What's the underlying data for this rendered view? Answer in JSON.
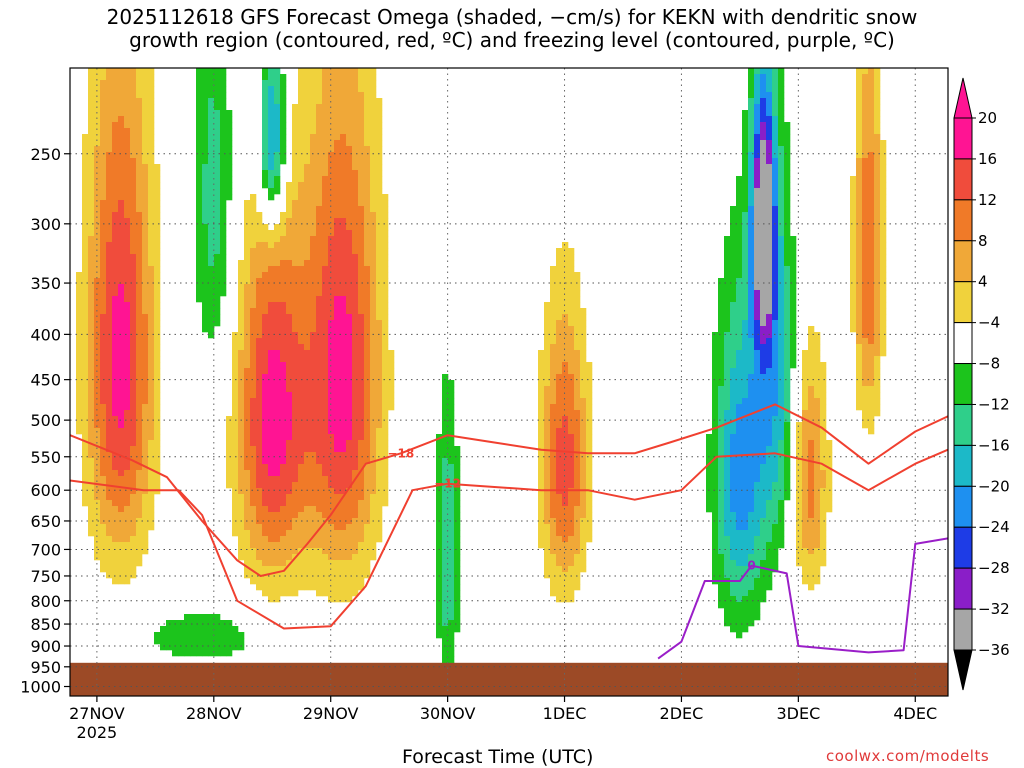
{
  "title": {
    "line1": "2025112618 GFS Forecast Omega (shaded, −cm/s) for KEKN with dendritic snow",
    "line2": "growth region (contoured, red, ºC) and freezing level (contoured, purple, ºC)"
  },
  "credit": "coolwx.com/modelts",
  "chart_data": {
    "type": "heatmap",
    "xlabel": "Forecast Time (UTC)",
    "ylabel": "",
    "x_ticks": [
      {
        "label": "27NOV",
        "sub": "2025",
        "day": 0
      },
      {
        "label": "28NOV",
        "sub": "",
        "day": 1
      },
      {
        "label": "29NOV",
        "sub": "",
        "day": 2
      },
      {
        "label": "30NOV",
        "sub": "",
        "day": 3
      },
      {
        "label": "1DEC",
        "sub": "",
        "day": 4
      },
      {
        "label": "2DEC",
        "sub": "",
        "day": 5
      },
      {
        "label": "3DEC",
        "sub": "",
        "day": 6
      },
      {
        "label": "4DEC",
        "sub": "",
        "day": 7
      }
    ],
    "xlim_days": [
      -0.23,
      7.28
    ],
    "y_ticks": [
      250,
      300,
      350,
      400,
      450,
      500,
      550,
      600,
      650,
      700,
      750,
      800,
      850,
      900,
      950,
      1000
    ],
    "ylim_hpa": [
      200,
      1025
    ],
    "y_scale": "log",
    "ground_level_hpa": 950,
    "colorbar": {
      "labels": [
        "20",
        "16",
        "12",
        "8",
        "4",
        "−4",
        "−8",
        "−12",
        "−16",
        "−20",
        "−24",
        "−28",
        "−32",
        "−36"
      ],
      "colors": [
        "#ff1493",
        "#f04c3c",
        "#f07a28",
        "#f0a838",
        "#f0d23c",
        "#ffffff",
        "#1cc41c",
        "#2fcf8a",
        "#1cb9c8",
        "#1e90f0",
        "#1e3ce6",
        "#8a1ec8",
        "#a6a6a6"
      ],
      "arrow_top_color": "#ff1493",
      "arrow_bottom_color": "#000000"
    },
    "omega_features": [
      {
        "day": 0.2,
        "p": 430,
        "halfwidth_days": 0.28,
        "halfdepth_hpa": 260,
        "value": 22
      },
      {
        "day": 1.5,
        "p": 500,
        "halfwidth_days": 0.3,
        "halfdepth_hpa": 230,
        "value": 22
      },
      {
        "day": 2.1,
        "p": 450,
        "halfwidth_days": 0.32,
        "halfdepth_hpa": 270,
        "value": 22
      },
      {
        "day": 4.0,
        "p": 560,
        "halfwidth_days": 0.2,
        "halfdepth_hpa": 200,
        "value": 18
      },
      {
        "day": 6.1,
        "p": 580,
        "halfwidth_days": 0.15,
        "halfdepth_hpa": 180,
        "value": 14
      },
      {
        "day": 6.6,
        "p": 330,
        "halfwidth_days": 0.12,
        "halfdepth_hpa": 160,
        "value": 16
      },
      {
        "day": 1.5,
        "p": 240,
        "halfwidth_days": 0.12,
        "halfdepth_hpa": 60,
        "value": -22
      },
      {
        "day": 1.0,
        "p": 280,
        "halfwidth_days": 0.18,
        "halfdepth_hpa": 150,
        "value": -10
      },
      {
        "day": 3.0,
        "p": 700,
        "halfwidth_days": 0.1,
        "halfdepth_hpa": 250,
        "value": -12
      },
      {
        "day": 5.5,
        "p": 580,
        "halfwidth_days": 0.22,
        "halfdepth_hpa": 240,
        "value": -18
      },
      {
        "day": 5.7,
        "p": 300,
        "halfwidth_days": 0.1,
        "halfdepth_hpa": 100,
        "value": -32
      },
      {
        "day": 5.8,
        "p": 450,
        "halfwidth_days": 0.18,
        "halfdepth_hpa": 220,
        "value": -14
      },
      {
        "day": 0.9,
        "p": 880,
        "halfwidth_days": 0.5,
        "halfdepth_hpa": 60,
        "value": -8
      }
    ],
    "contours": [
      {
        "name": "-18",
        "color": "#f04030",
        "label": "−18",
        "points": [
          [
            -0.23,
            520
          ],
          [
            0.3,
            555
          ],
          [
            0.6,
            580
          ],
          [
            0.9,
            650
          ],
          [
            1.2,
            720
          ],
          [
            1.4,
            750
          ],
          [
            1.6,
            740
          ],
          [
            1.8,
            690
          ],
          [
            2.0,
            640
          ],
          [
            2.3,
            560
          ],
          [
            2.6,
            545
          ],
          [
            3.0,
            520
          ],
          [
            3.4,
            530
          ],
          [
            3.8,
            540
          ],
          [
            4.2,
            545
          ],
          [
            4.6,
            545
          ],
          [
            4.9,
            530
          ],
          [
            5.3,
            510
          ],
          [
            5.8,
            480
          ],
          [
            6.2,
            510
          ],
          [
            6.6,
            560
          ],
          [
            7.0,
            515
          ],
          [
            7.28,
            495
          ]
        ]
      },
      {
        "name": "-12",
        "color": "#f04030",
        "label": "−12",
        "points": [
          [
            -0.23,
            585
          ],
          [
            0.4,
            600
          ],
          [
            0.7,
            600
          ],
          [
            0.9,
            640
          ],
          [
            1.2,
            800
          ],
          [
            1.6,
            860
          ],
          [
            2.0,
            855
          ],
          [
            2.3,
            770
          ],
          [
            2.7,
            600
          ],
          [
            3.0,
            590
          ],
          [
            3.4,
            595
          ],
          [
            3.8,
            600
          ],
          [
            4.2,
            600
          ],
          [
            4.6,
            615
          ],
          [
            5.0,
            600
          ],
          [
            5.3,
            550
          ],
          [
            5.8,
            545
          ],
          [
            6.2,
            560
          ],
          [
            6.6,
            600
          ],
          [
            7.0,
            560
          ],
          [
            7.28,
            540
          ]
        ]
      },
      {
        "name": "0",
        "color": "#9a1ec8",
        "label": "0",
        "points": [
          [
            4.8,
            930
          ],
          [
            5.0,
            890
          ],
          [
            5.2,
            760
          ],
          [
            5.5,
            760
          ],
          [
            5.6,
            730
          ],
          [
            5.9,
            745
          ],
          [
            6.0,
            900
          ],
          [
            6.6,
            915
          ],
          [
            6.9,
            910
          ],
          [
            7.0,
            690
          ],
          [
            7.28,
            680
          ]
        ]
      }
    ]
  }
}
